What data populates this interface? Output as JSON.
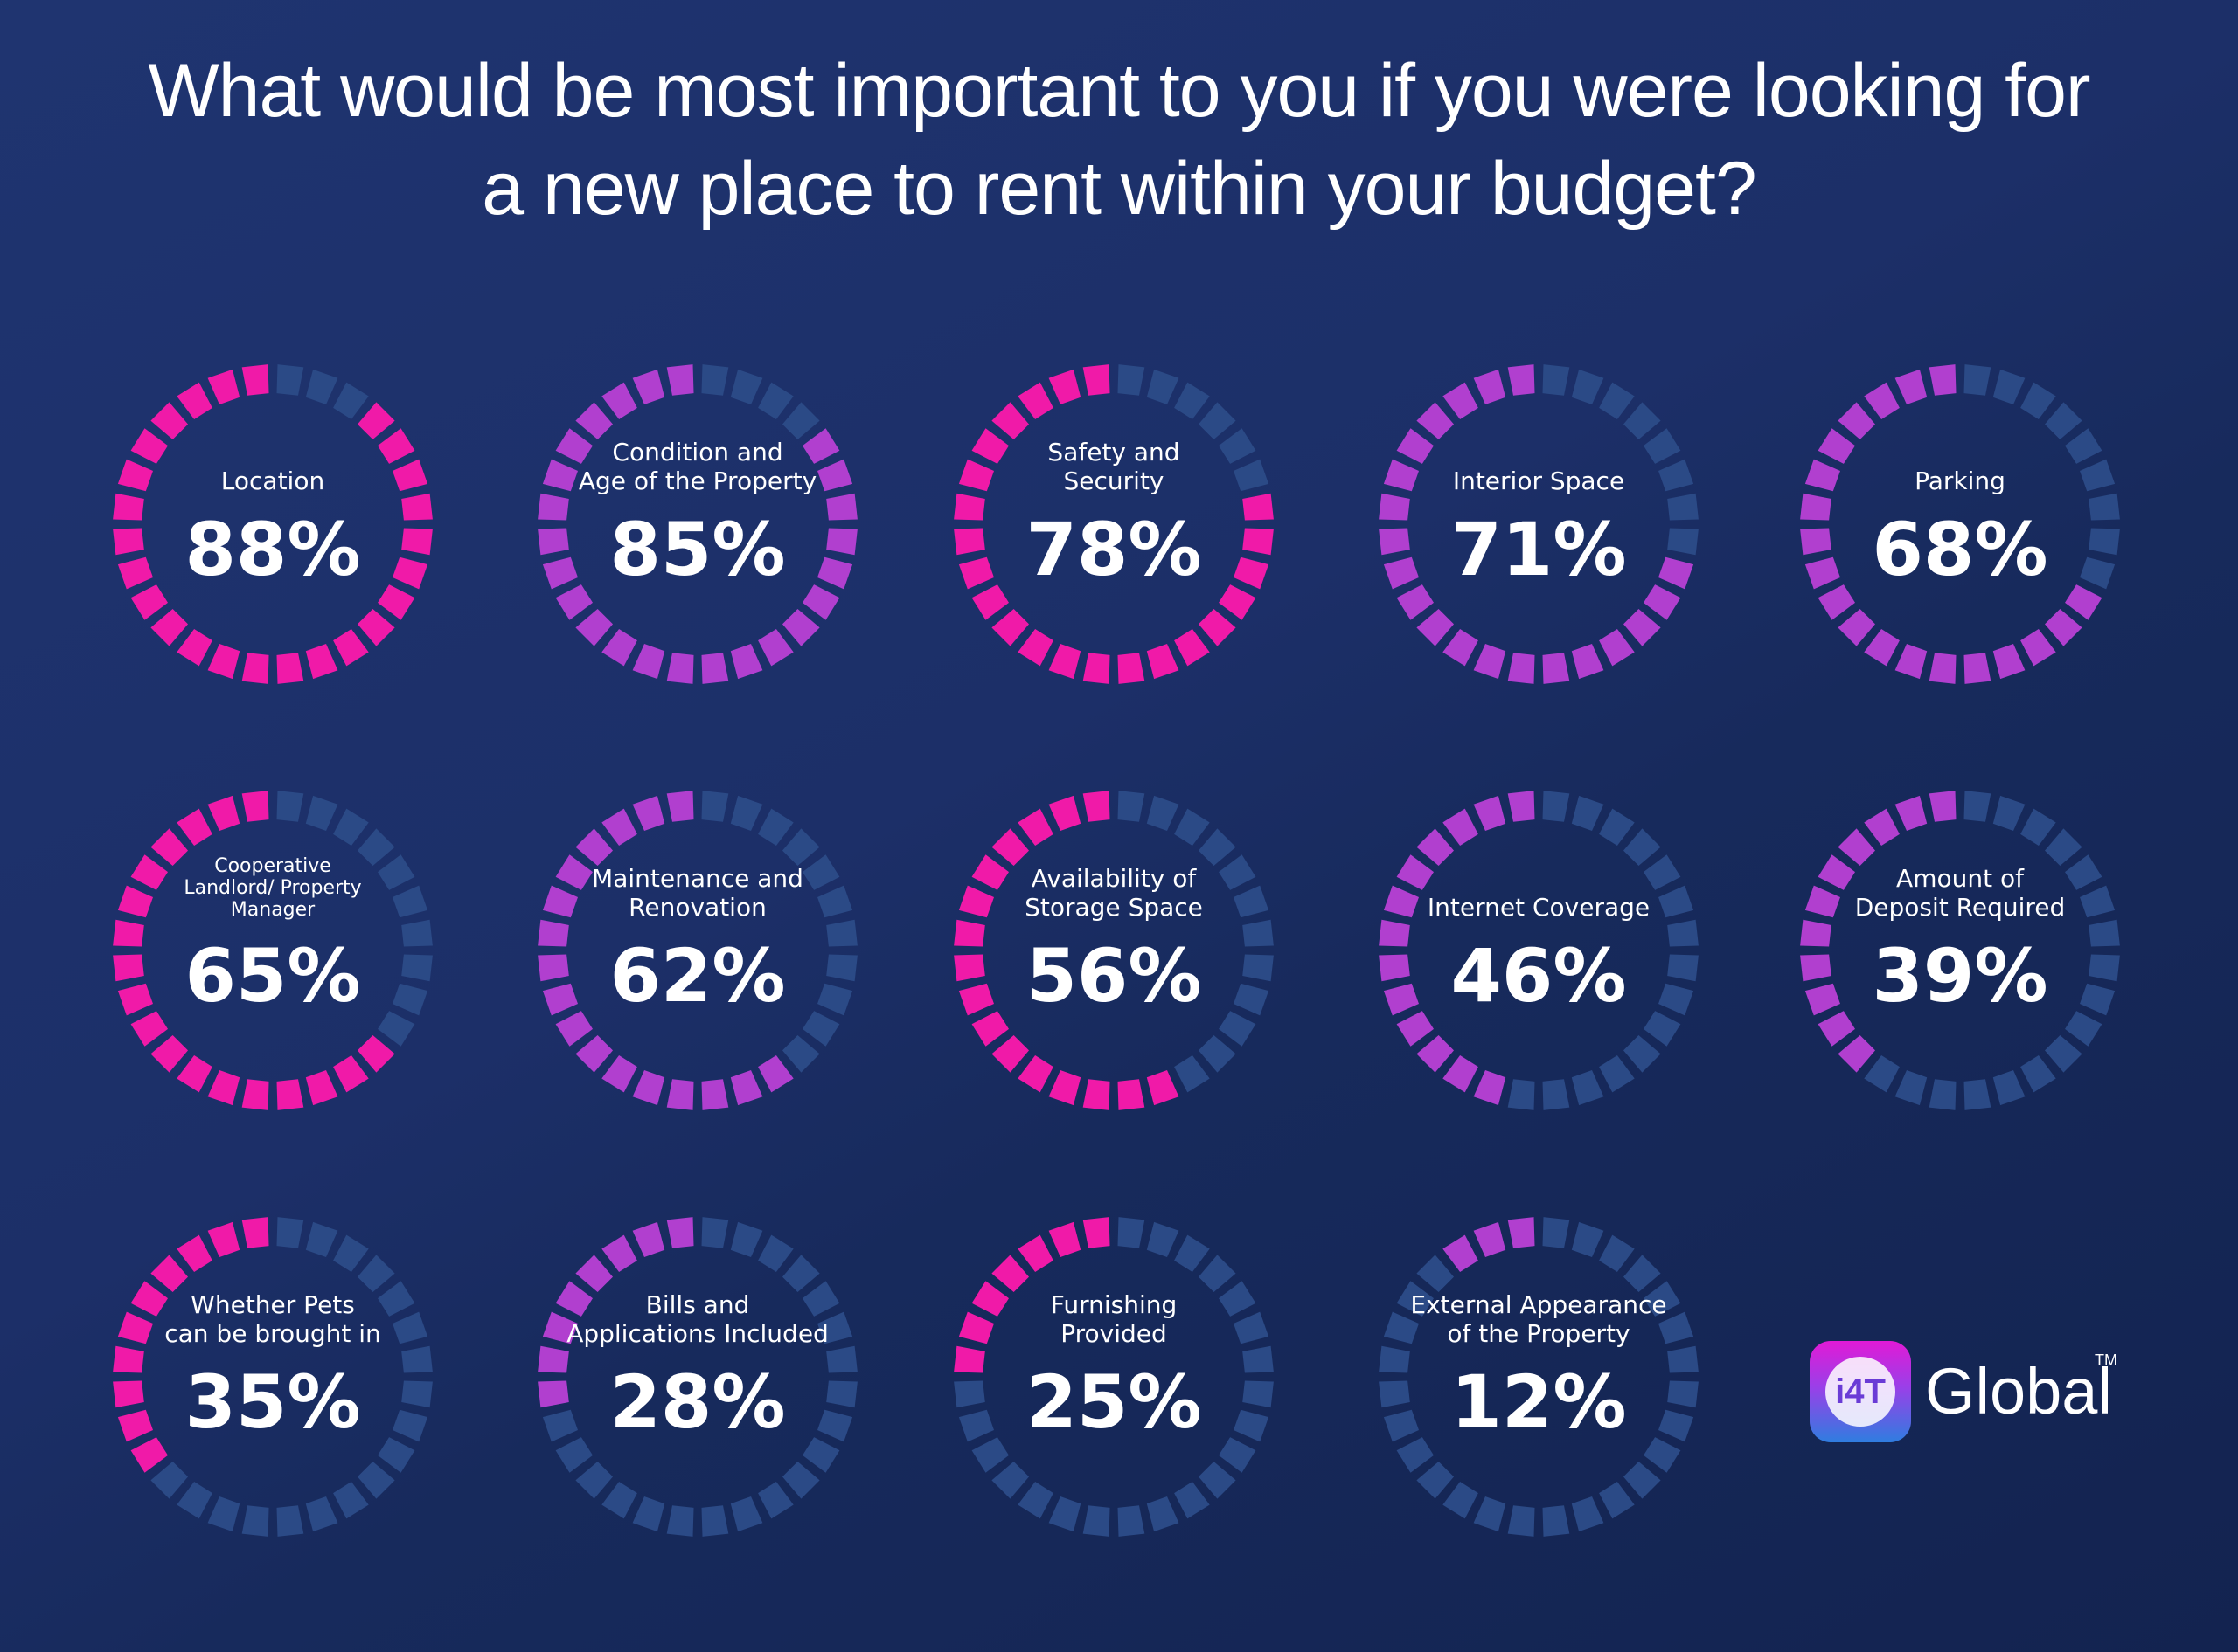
{
  "title": {
    "line1": "What would be most important to you if you were looking for",
    "line2": "a new place to rent within your budget?"
  },
  "colors": {
    "background_start": "#1f3470",
    "background_end": "#132350",
    "segment_pink": "#f01aa8",
    "segment_purple": "#b13fcf",
    "segment_inactive": "#2b4a86"
  },
  "chart_data": {
    "type": "radial-progress",
    "unit": "%",
    "max": 100,
    "items": [
      {
        "label": [
          "Location"
        ],
        "value": 88,
        "display": "88%",
        "color": "pink"
      },
      {
        "label": [
          "Condition and",
          "Age of the Property"
        ],
        "value": 85,
        "display": "85%",
        "color": "purple"
      },
      {
        "label": [
          "Safety and",
          "Security"
        ],
        "value": 78,
        "display": "78%",
        "color": "pink"
      },
      {
        "label": [
          "Interior Space"
        ],
        "value": 71,
        "display": "71%",
        "color": "purple"
      },
      {
        "label": [
          "Parking"
        ],
        "value": 68,
        "display": "68%",
        "color": "purple"
      },
      {
        "label": [
          "Cooperative",
          "Landlord/ Property",
          "Manager"
        ],
        "value": 65,
        "display": "65%",
        "color": "pink"
      },
      {
        "label": [
          "Maintenance and",
          "Renovation"
        ],
        "value": 62,
        "display": "62%",
        "color": "purple"
      },
      {
        "label": [
          "Availability of",
          "Storage Space"
        ],
        "value": 56,
        "display": "56%",
        "color": "pink"
      },
      {
        "label": [
          "Internet Coverage"
        ],
        "value": 46,
        "display": "46%",
        "color": "purple"
      },
      {
        "label": [
          "Amount of",
          "Deposit Required"
        ],
        "value": 39,
        "display": "39%",
        "color": "purple"
      },
      {
        "label": [
          "Whether Pets",
          "can be brought in"
        ],
        "value": 35,
        "display": "35%",
        "color": "pink"
      },
      {
        "label": [
          "Bills and",
          "Applications Included"
        ],
        "value": 28,
        "display": "28%",
        "color": "purple"
      },
      {
        "label": [
          "Furnishing",
          "Provided"
        ],
        "value": 25,
        "display": "25%",
        "color": "pink"
      },
      {
        "label": [
          "External Appearance",
          "of the Property"
        ],
        "value": 12,
        "display": "12%",
        "color": "purple"
      }
    ]
  },
  "brand": {
    "badge_text": "i4T",
    "name": "Global",
    "trademark": "TM"
  }
}
